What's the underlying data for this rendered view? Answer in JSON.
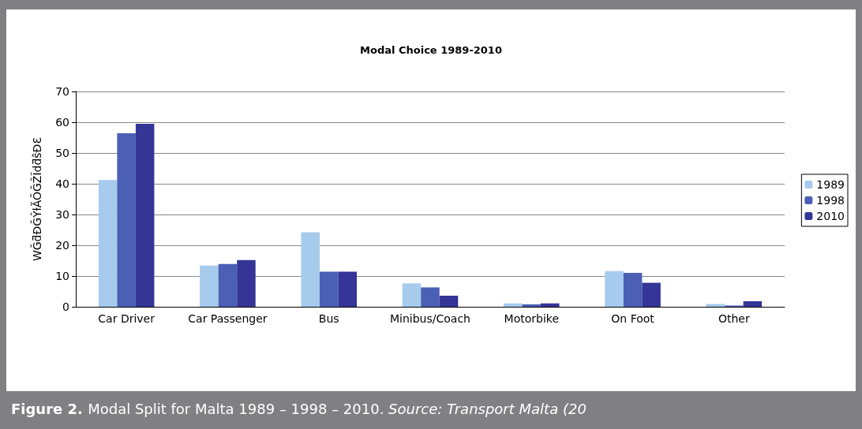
{
  "chart_data": {
    "type": "bar",
    "title": "Modal Choice 1989-2010",
    "ylabel": "WĞƌĐĞŶƚĂŐĞŽĨdƌŝƉƐ",
    "categories": [
      "Car Driver",
      "Car Passenger",
      "Bus",
      "Minibus/Coach",
      "Motorbike",
      "On Foot",
      "Other"
    ],
    "series": [
      {
        "name": "1989",
        "color": "#a6cbed",
        "values": [
          41.2,
          13.4,
          24.2,
          7.6,
          1.1,
          11.6,
          0.9
        ]
      },
      {
        "name": "1998",
        "color": "#4b5fb5",
        "values": [
          56.4,
          13.9,
          11.4,
          6.3,
          0.8,
          11.0,
          0.4
        ]
      },
      {
        "name": "2010",
        "color": "#353597",
        "values": [
          59.5,
          15.2,
          11.4,
          3.6,
          1.1,
          7.8,
          1.8
        ]
      }
    ],
    "ylim": [
      0,
      70
    ],
    "yticks": [
      0,
      10,
      20,
      30,
      40,
      50,
      60,
      70
    ],
    "grid": "y",
    "legend": "right",
    "annotations": [
      "Figure 2.",
      "Modal Split for Malta 1989 – 1998 – 2010.",
      "Source: Transport Malta (20"
    ]
  }
}
